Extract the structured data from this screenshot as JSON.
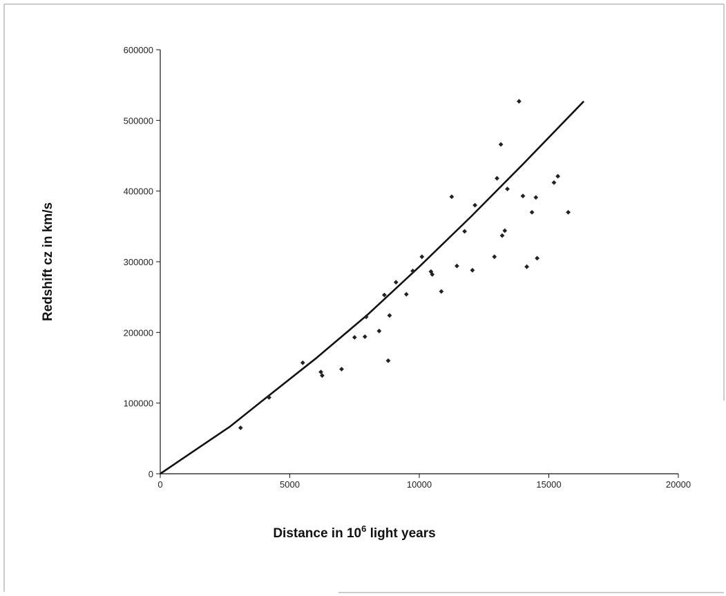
{
  "chart_data": {
    "type": "scatter",
    "title": "",
    "xlabel": "Distance in 10",
    "xlabel_superscript": "6",
    "xlabel_suffix": " light years",
    "ylabel": "Redshift cz in km/s",
    "xlim": [
      0,
      20000
    ],
    "ylim": [
      0,
      600000
    ],
    "x_ticks": [
      0,
      5000,
      10000,
      15000,
      20000
    ],
    "x_tick_labels": [
      "0",
      "5000",
      "10000",
      "15000",
      "20000"
    ],
    "y_ticks": [
      0,
      100000,
      200000,
      300000,
      400000,
      500000,
      600000
    ],
    "y_tick_labels": [
      "0",
      "100000",
      "200000",
      "300000",
      "400000",
      "500000",
      "600000"
    ],
    "grid": false,
    "series": [
      {
        "kind": "scatter",
        "marker": "diamond",
        "color": "#222222",
        "points": [
          [
            3100,
            65000
          ],
          [
            4200,
            108000
          ],
          [
            5500,
            157000
          ],
          [
            6200,
            144000
          ],
          [
            6250,
            139000
          ],
          [
            7000,
            148000
          ],
          [
            7500,
            193000
          ],
          [
            7900,
            194000
          ],
          [
            7950,
            222000
          ],
          [
            8450,
            202000
          ],
          [
            8650,
            253000
          ],
          [
            8800,
            160000
          ],
          [
            8850,
            224000
          ],
          [
            9100,
            271000
          ],
          [
            9500,
            254000
          ],
          [
            9750,
            287000
          ],
          [
            10100,
            307000
          ],
          [
            10450,
            286000
          ],
          [
            10500,
            282000
          ],
          [
            10850,
            258000
          ],
          [
            11250,
            392000
          ],
          [
            11450,
            294000
          ],
          [
            11750,
            343000
          ],
          [
            12050,
            288000
          ],
          [
            12150,
            380000
          ],
          [
            12900,
            307000
          ],
          [
            13000,
            418000
          ],
          [
            13150,
            466000
          ],
          [
            13200,
            337000
          ],
          [
            13300,
            344000
          ],
          [
            13400,
            403000
          ],
          [
            13850,
            527000
          ],
          [
            14000,
            393000
          ],
          [
            14150,
            293000
          ],
          [
            14350,
            370000
          ],
          [
            14500,
            391000
          ],
          [
            14550,
            305000
          ],
          [
            15200,
            412000
          ],
          [
            15350,
            421000
          ],
          [
            15750,
            370000
          ]
        ]
      },
      {
        "kind": "line",
        "color": "#111111",
        "points": [
          [
            0,
            0
          ],
          [
            2700,
            67000
          ],
          [
            4000,
            105000
          ],
          [
            6000,
            163000
          ],
          [
            8000,
            225000
          ],
          [
            10000,
            293000
          ],
          [
            12000,
            364000
          ],
          [
            14000,
            438000
          ],
          [
            16350,
            527000
          ]
        ]
      }
    ]
  }
}
